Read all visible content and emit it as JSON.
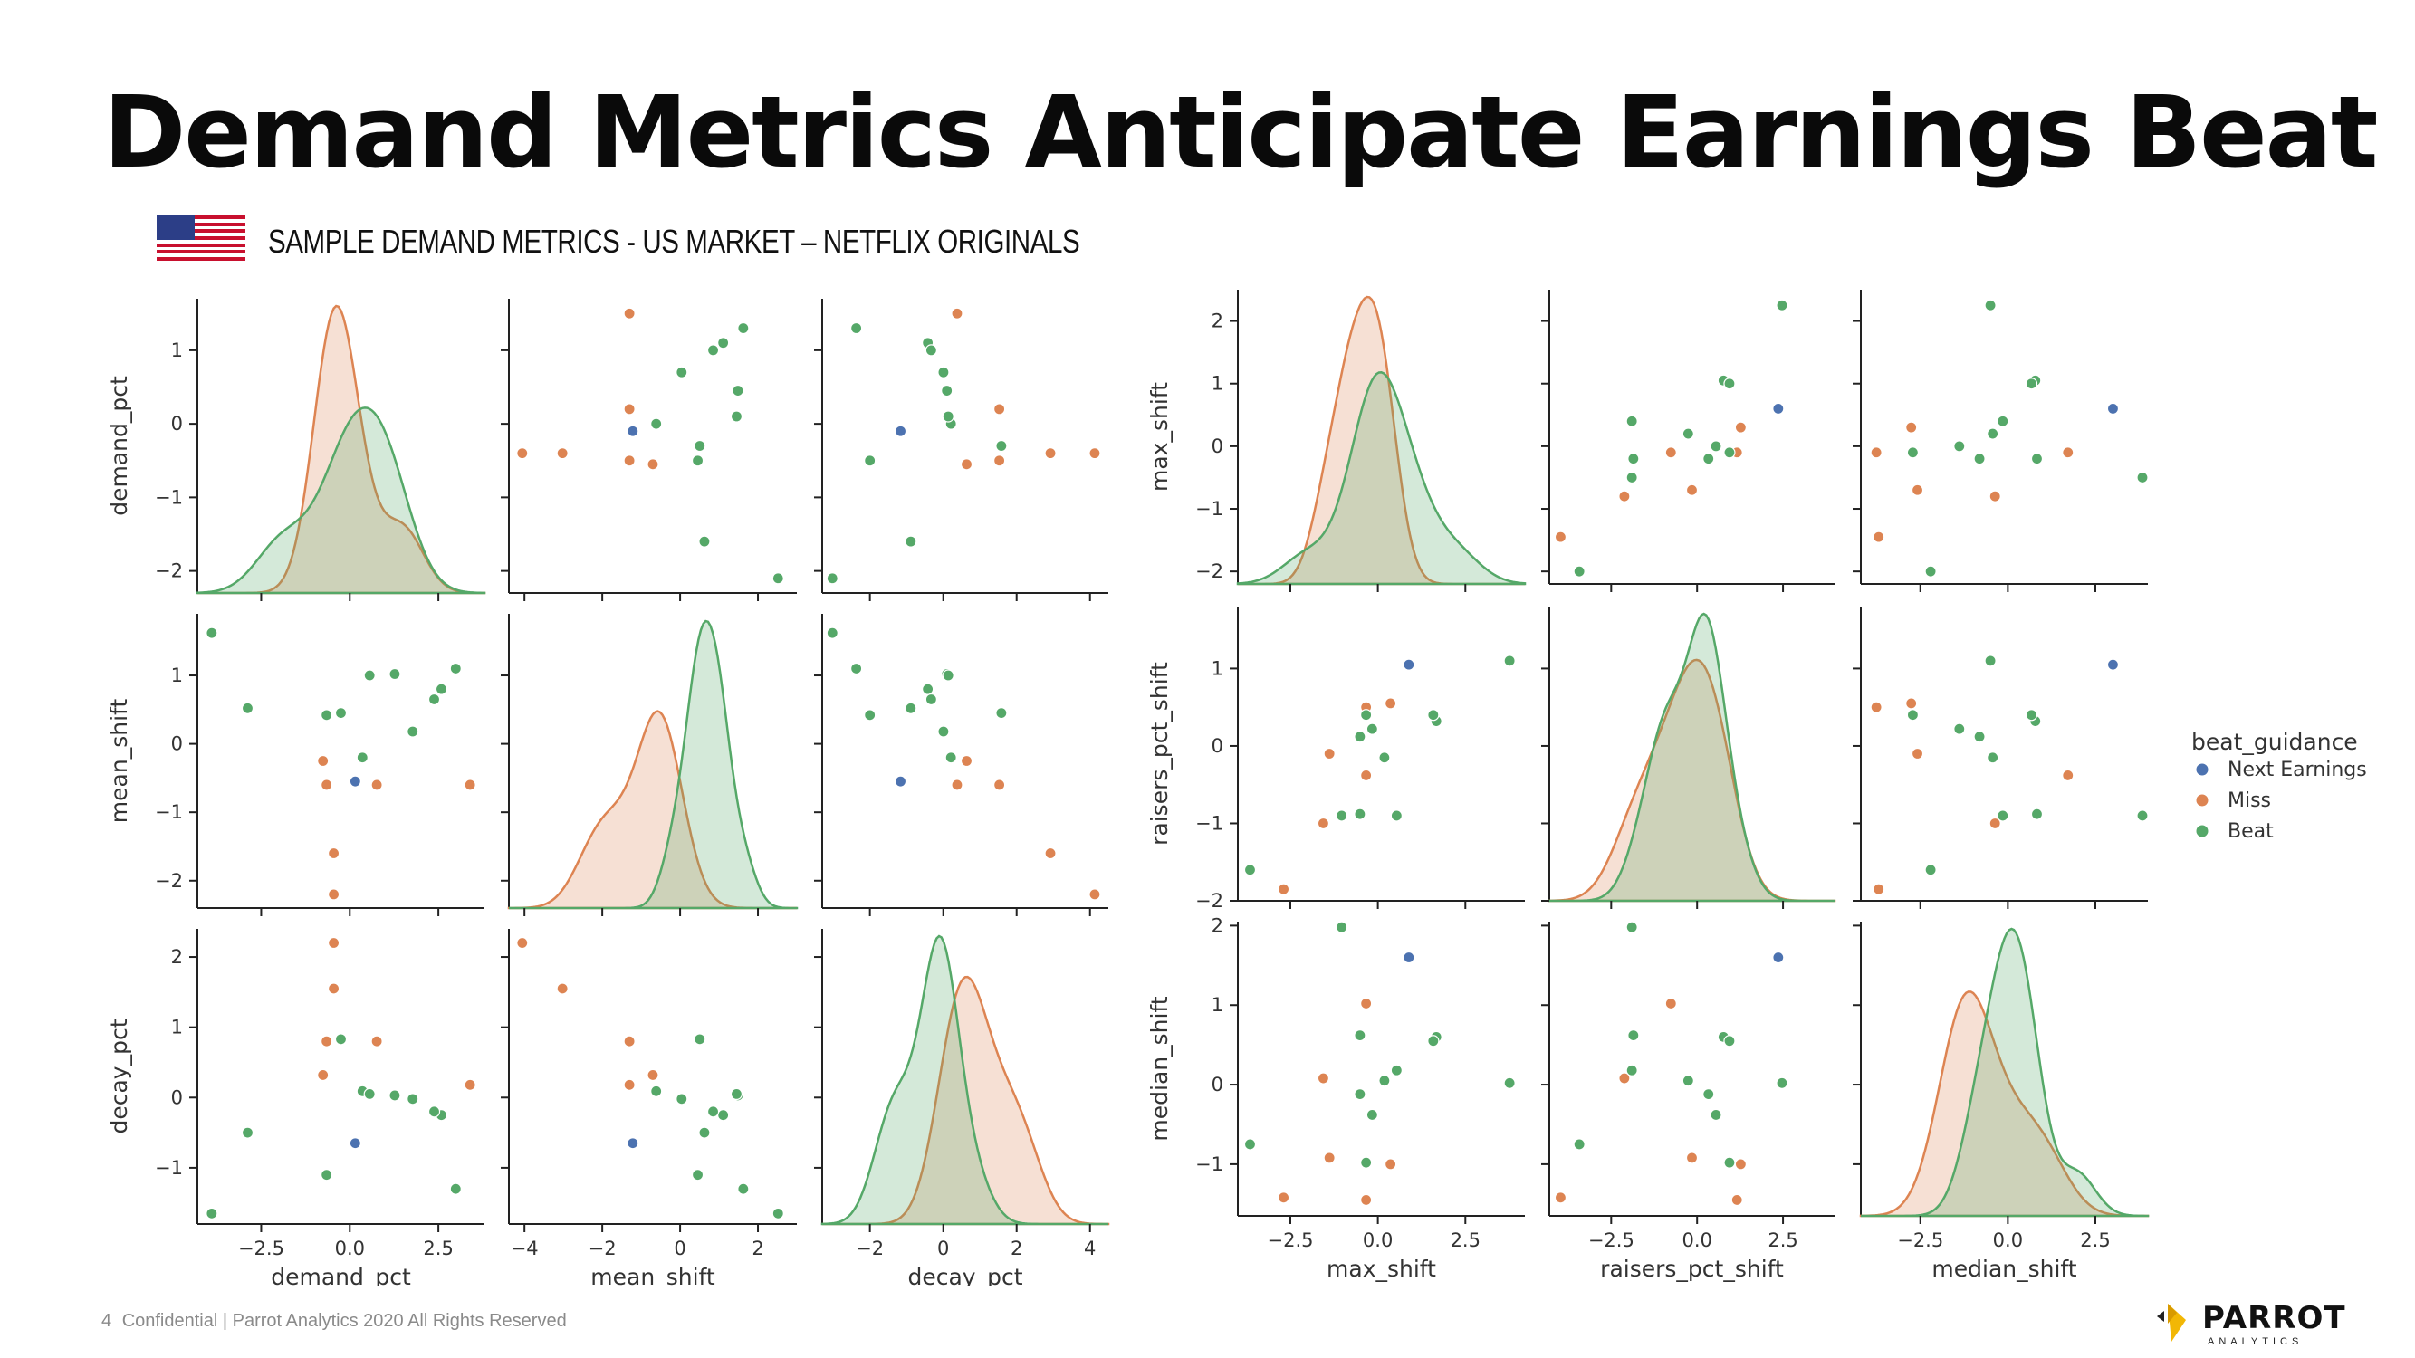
{
  "title": "Demand Metrics Anticipate Earnings Beat",
  "subtitle": "SAMPLE DEMAND METRICS - US MARKET – NETFLIX ORIGINALS",
  "footer": {
    "page_number": "4",
    "text": "Confidential  |  Parrot Analytics 2020 All Rights Reserved"
  },
  "logo": {
    "name": "PARROT",
    "sub": "ANALYTICS"
  },
  "colors": {
    "Next Earnings": "#4c72b0",
    "Miss": "#dd8452",
    "Beat": "#55a868"
  },
  "chart_data": [
    {
      "type": "scatter",
      "subtype": "pairplot",
      "variables": [
        "demand_pct",
        "mean_shift",
        "decay_pct"
      ],
      "diagonal": "kde",
      "axis_ranges": {
        "demand_pct": [
          -2.3,
          1.7
        ],
        "mean_shift": [
          -2.4,
          1.9
        ],
        "decay_pct": [
          -1.8,
          2.4
        ]
      },
      "x_axis_ranges": {
        "demand_pct": [
          -4.3,
          3.8
        ],
        "mean_shift": [
          -4.4,
          3.0
        ],
        "decay_pct": [
          -3.3,
          4.5
        ]
      },
      "x_ticks": {
        "demand_pct": [
          "-2.5",
          "0.0",
          "2.5"
        ],
        "mean_shift": [
          "-4",
          "-2",
          "0",
          "2"
        ],
        "decay_pct": [
          "-2",
          "0",
          "2",
          "4"
        ]
      },
      "y_ticks": {
        "demand_pct": [
          "1",
          "0",
          "-1",
          "-2"
        ],
        "mean_shift": [
          "1",
          "0",
          "-1",
          "-2"
        ],
        "decay_pct": [
          "2",
          "1",
          "0",
          "-1"
        ]
      },
      "series": [
        {
          "name": "Next Earnings",
          "points": [
            {
              "demand_pct": -0.1,
              "mean_shift": -0.55,
              "decay_pct": -0.65
            }
          ]
        },
        {
          "name": "Miss",
          "points": [
            {
              "demand_pct": -0.4,
              "mean_shift": -1.6,
              "decay_pct": 1.55
            },
            {
              "demand_pct": -0.4,
              "mean_shift": -2.2,
              "decay_pct": 2.2
            },
            {
              "demand_pct": -0.55,
              "mean_shift": -0.25,
              "decay_pct": 0.32
            },
            {
              "demand_pct": 0.2,
              "mean_shift": -0.6,
              "decay_pct": 0.8
            },
            {
              "demand_pct": -0.5,
              "mean_shift": -0.6,
              "decay_pct": 0.8
            },
            {
              "demand_pct": 1.5,
              "mean_shift": -0.6,
              "decay_pct": 0.18
            }
          ]
        },
        {
          "name": "Beat",
          "points": [
            {
              "demand_pct": 1.3,
              "mean_shift": 1.1,
              "decay_pct": -1.3
            },
            {
              "demand_pct": 1.1,
              "mean_shift": 0.8,
              "decay_pct": -0.25
            },
            {
              "demand_pct": 1.0,
              "mean_shift": 0.65,
              "decay_pct": -0.2
            },
            {
              "demand_pct": 0.7,
              "mean_shift": 0.18,
              "decay_pct": -0.02
            },
            {
              "demand_pct": 0.45,
              "mean_shift": 1.02,
              "decay_pct": 0.03
            },
            {
              "demand_pct": 0.0,
              "mean_shift": -0.2,
              "decay_pct": 0.09
            },
            {
              "demand_pct": -0.3,
              "mean_shift": 0.45,
              "decay_pct": 0.83
            },
            {
              "demand_pct": -0.5,
              "mean_shift": 0.42,
              "decay_pct": -1.1
            },
            {
              "demand_pct": -1.6,
              "mean_shift": 0.52,
              "decay_pct": -0.5
            },
            {
              "demand_pct": -2.1,
              "mean_shift": 1.62,
              "decay_pct": -1.65
            },
            {
              "demand_pct": 0.1,
              "mean_shift": 1.0,
              "decay_pct": 0.05
            }
          ]
        }
      ]
    },
    {
      "type": "scatter",
      "subtype": "pairplot",
      "variables": [
        "max_shift",
        "raisers_pct_shift",
        "median_shift"
      ],
      "diagonal": "kde",
      "axis_ranges": {
        "max_shift": [
          -2.2,
          2.5
        ],
        "raisers_pct_shift": [
          -2.0,
          1.8
        ],
        "median_shift": [
          -1.65,
          2.05
        ]
      },
      "x_axis_ranges": {
        "max_shift": [
          -4.0,
          4.2
        ],
        "raisers_pct_shift": [
          -4.3,
          4.0
        ],
        "median_shift": [
          -4.2,
          4.0
        ]
      },
      "x_ticks": {
        "max_shift": [
          "-2.5",
          "0.0",
          "2.5"
        ],
        "raisers_pct_shift": [
          "-2.5",
          "0.0",
          "2.5"
        ],
        "median_shift": [
          "-2.5",
          "0.0",
          "2.5"
        ]
      },
      "y_ticks": {
        "max_shift": [
          "2",
          "1",
          "0",
          "-1",
          "-2"
        ],
        "raisers_pct_shift": [
          "1",
          "0",
          "-1",
          "-2"
        ],
        "median_shift": [
          "2",
          "1",
          "0",
          "-1"
        ]
      },
      "series": [
        {
          "name": "Next Earnings",
          "points": [
            {
              "max_shift": 0.6,
              "raisers_pct_shift": 1.05,
              "median_shift": 1.6
            }
          ]
        },
        {
          "name": "Miss",
          "points": [
            {
              "max_shift": 0.3,
              "raisers_pct_shift": 0.55,
              "median_shift": -1.0
            },
            {
              "max_shift": -0.7,
              "raisers_pct_shift": -0.1,
              "median_shift": -0.92
            },
            {
              "max_shift": -0.8,
              "raisers_pct_shift": -1.0,
              "median_shift": 0.08
            },
            {
              "max_shift": -0.1,
              "raisers_pct_shift": -0.38,
              "median_shift": 1.02
            },
            {
              "max_shift": -1.45,
              "raisers_pct_shift": -1.85,
              "median_shift": -1.42
            },
            {
              "max_shift": -0.1,
              "raisers_pct_shift": 0.5,
              "median_shift": -1.45
            }
          ]
        },
        {
          "name": "Beat",
          "points": [
            {
              "max_shift": 2.25,
              "raisers_pct_shift": 1.1,
              "median_shift": 0.02
            },
            {
              "max_shift": 1.05,
              "raisers_pct_shift": 0.32,
              "median_shift": 0.6
            },
            {
              "max_shift": 1.0,
              "raisers_pct_shift": 0.4,
              "median_shift": 0.55
            },
            {
              "max_shift": 0.4,
              "raisers_pct_shift": -0.9,
              "median_shift": 0.18
            },
            {
              "max_shift": 0.0,
              "raisers_pct_shift": 0.22,
              "median_shift": -0.38
            },
            {
              "max_shift": -0.2,
              "raisers_pct_shift": 0.12,
              "median_shift": -0.12
            },
            {
              "max_shift": -0.2,
              "raisers_pct_shift": -0.88,
              "median_shift": 0.62
            },
            {
              "max_shift": -0.1,
              "raisers_pct_shift": 0.4,
              "median_shift": -0.98
            },
            {
              "max_shift": -0.5,
              "raisers_pct_shift": -0.9,
              "median_shift": 1.98
            },
            {
              "max_shift": -2.0,
              "raisers_pct_shift": -1.6,
              "median_shift": -0.75
            },
            {
              "max_shift": 0.2,
              "raisers_pct_shift": -0.15,
              "median_shift": 0.05
            }
          ]
        }
      ]
    }
  ],
  "legend": {
    "title": "beat_guidance",
    "placement": "right",
    "items": [
      "Next Earnings",
      "Miss",
      "Beat"
    ]
  }
}
